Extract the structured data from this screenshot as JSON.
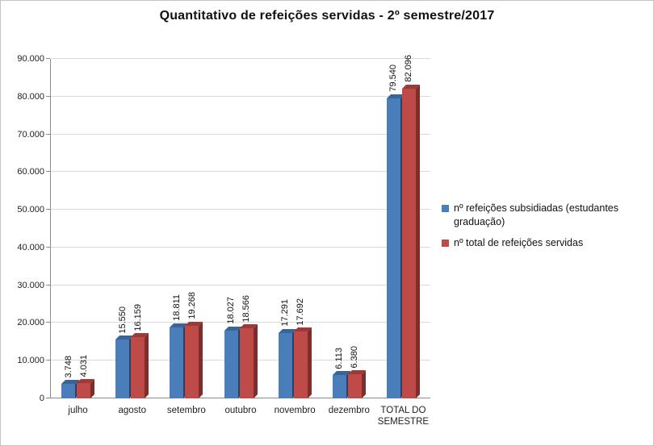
{
  "chart_data": {
    "type": "bar",
    "title": "Quantitativo de refeições servidas - 2º semestre/2017",
    "categories": [
      "julho",
      "agosto",
      "setembro",
      "outubro",
      "novembro",
      "dezembro",
      "TOTAL DO SEMESTRE"
    ],
    "series": [
      {
        "name": "nº refeições subsidiadas (estudantes graduação)",
        "color": "#4a7ebb",
        "top_color": "#3a6398",
        "side_color": "#24436b",
        "values": [
          3748,
          15550,
          18811,
          18027,
          17291,
          6113,
          79540
        ],
        "labels": [
          "3.748",
          "15.550",
          "18.811",
          "18.027",
          "17.291",
          "6.113",
          "79.540"
        ]
      },
      {
        "name": "nº total de refeições servidas",
        "color": "#be4b48",
        "top_color": "#9c3a37",
        "side_color": "#7f2d2a",
        "values": [
          4031,
          16159,
          19268,
          18566,
          17692,
          6380,
          82096
        ],
        "labels": [
          "4.031",
          "16.159",
          "19.268",
          "18.566",
          "17.692",
          "6.380",
          "82.096"
        ]
      }
    ],
    "ylim": [
      0,
      90000
    ],
    "y_ticks": [
      "0",
      "10.000",
      "20.000",
      "30.000",
      "40.000",
      "50.000",
      "60.000",
      "70.000",
      "80.000",
      "90.000"
    ],
    "grid": true,
    "legend_position": "right"
  }
}
